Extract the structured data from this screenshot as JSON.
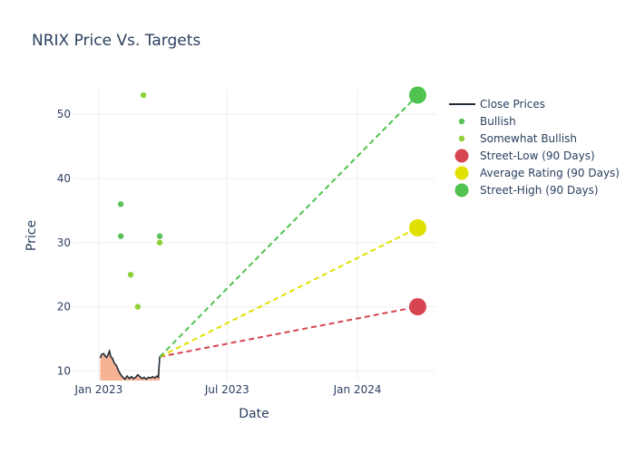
{
  "chart_data": {
    "type": "line",
    "title": "NRIX Price Vs. Targets",
    "xlabel": "Date",
    "ylabel": "Price",
    "x_ticks": [
      "Jan 2023",
      "Jul 2023",
      "Jan 2024"
    ],
    "y_ticks": [
      10,
      20,
      30,
      40,
      50
    ],
    "ylim": [
      8.5,
      53.7
    ],
    "xlim": [
      "2022-11-25",
      "2024-04-20"
    ],
    "grid": true,
    "legend_position": "right",
    "close_prices": {
      "name": "Close Prices",
      "color": "#1f2a37",
      "fill_color": "#f4a582",
      "points": [
        [
          "2023-01-03",
          12.0
        ],
        [
          "2023-01-05",
          12.6
        ],
        [
          "2023-01-08",
          12.7
        ],
        [
          "2023-01-10",
          12.3
        ],
        [
          "2023-01-12",
          12.1
        ],
        [
          "2023-01-14",
          12.5
        ],
        [
          "2023-01-16",
          13.1
        ],
        [
          "2023-01-18",
          12.2
        ],
        [
          "2023-01-20",
          12.0
        ],
        [
          "2023-01-23",
          11.2
        ],
        [
          "2023-01-26",
          10.8
        ],
        [
          "2023-01-29",
          10.0
        ],
        [
          "2023-02-01",
          9.4
        ],
        [
          "2023-02-04",
          9.0
        ],
        [
          "2023-02-07",
          8.7
        ],
        [
          "2023-02-10",
          9.2
        ],
        [
          "2023-02-13",
          8.8
        ],
        [
          "2023-02-16",
          9.1
        ],
        [
          "2023-02-19",
          8.8
        ],
        [
          "2023-02-22",
          9.0
        ],
        [
          "2023-02-25",
          9.4
        ],
        [
          "2023-02-28",
          9.1
        ],
        [
          "2023-03-03",
          8.8
        ],
        [
          "2023-03-06",
          9.0
        ],
        [
          "2023-03-09",
          8.7
        ],
        [
          "2023-03-12",
          9.0
        ],
        [
          "2023-03-15",
          8.9
        ],
        [
          "2023-03-18",
          9.1
        ],
        [
          "2023-03-21",
          8.9
        ],
        [
          "2023-03-24",
          9.2
        ],
        [
          "2023-03-26",
          9.0
        ],
        [
          "2023-03-28",
          12.2
        ]
      ]
    },
    "analyst_ratings": [
      {
        "name": "Bullish",
        "color": "#5cc15a",
        "points": [
          [
            "2023-02-01",
            36
          ],
          [
            "2023-02-01",
            31
          ],
          [
            "2023-03-28",
            31
          ]
        ]
      },
      {
        "name": "Somewhat Bullish",
        "color": "#8fd13a",
        "points": [
          [
            "2023-02-15",
            25
          ],
          [
            "2023-02-25",
            20
          ],
          [
            "2023-03-05",
            53
          ],
          [
            "2023-03-28",
            30
          ]
        ]
      }
    ],
    "targets": [
      {
        "name": "Street-Low (90 Days)",
        "color": "#d64550",
        "start": [
          "2023-03-28",
          12.2
        ],
        "end": [
          "2024-03-26",
          20
        ]
      },
      {
        "name": "Average Rating (90 Days)",
        "color": "#e1e000",
        "start": [
          "2023-03-28",
          12.2
        ],
        "end": [
          "2024-03-26",
          32.3
        ]
      },
      {
        "name": "Street-High (90 Days)",
        "color": "#4fc24f",
        "start": [
          "2023-03-28",
          12.2
        ],
        "end": [
          "2024-03-26",
          53
        ]
      }
    ]
  }
}
